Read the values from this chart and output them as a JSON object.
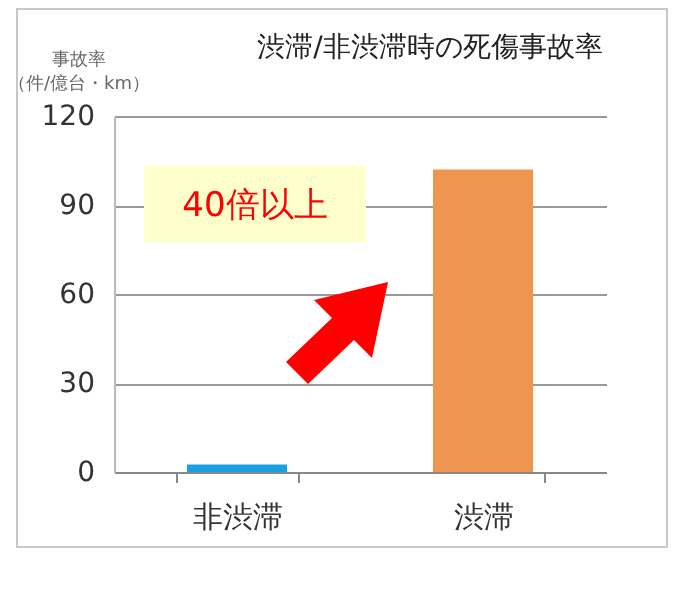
{
  "chart_data": {
    "type": "bar",
    "title": "渋滞/非渋滞時の死傷事故率",
    "ylabel": "事故率（件/億台・km）",
    "categories": [
      "非渋滞",
      "渋滞"
    ],
    "values": [
      2.5,
      102
    ],
    "colors": [
      "#1ba1e2",
      "#f0954f"
    ],
    "ylim": [
      0,
      120
    ],
    "yticks": [
      0,
      30,
      60,
      90,
      120
    ],
    "grid": "y",
    "annotations": [
      "40倍以上"
    ]
  }
}
